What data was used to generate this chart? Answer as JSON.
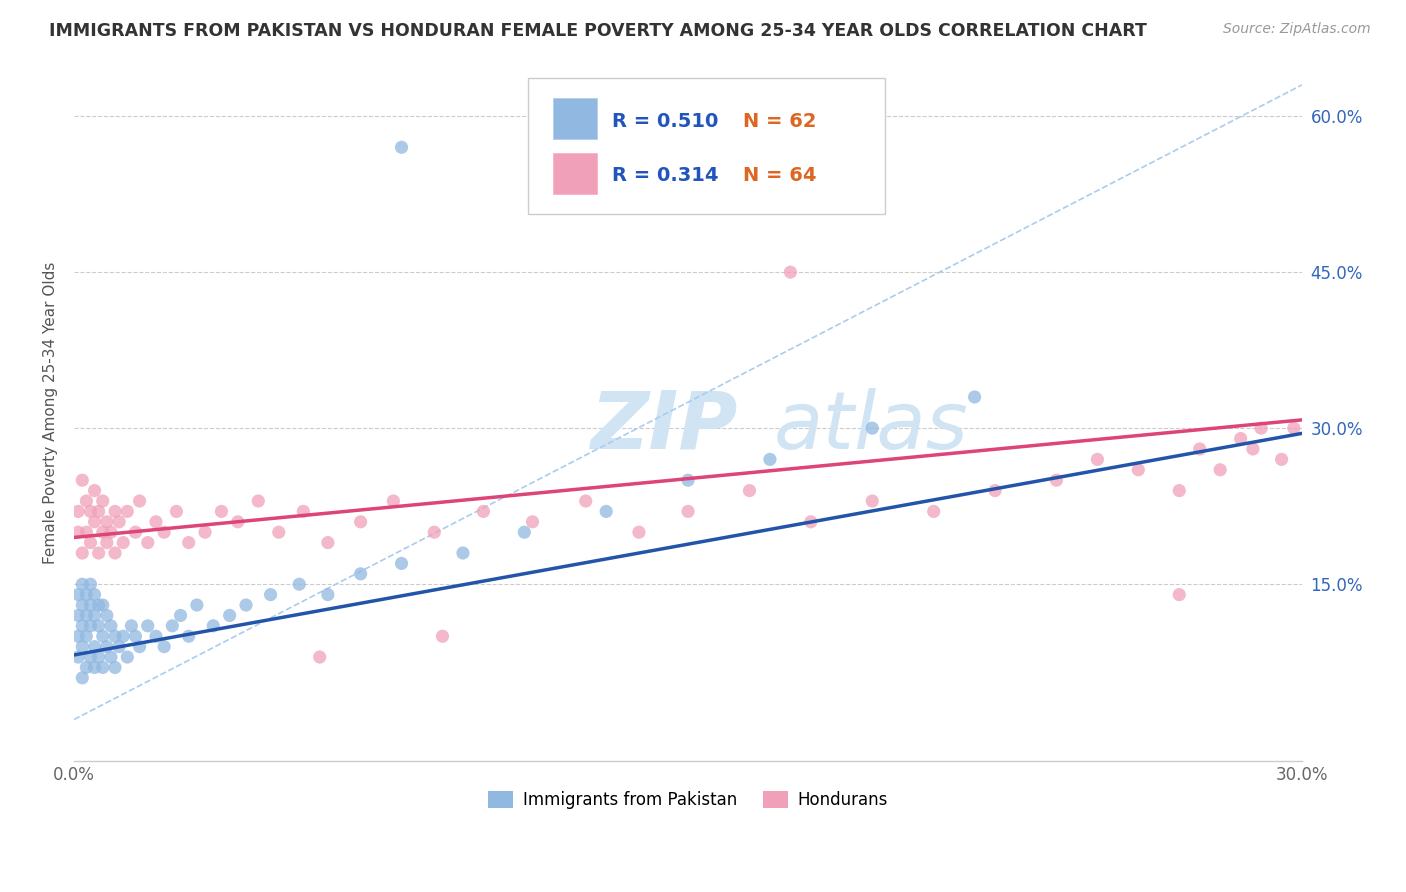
{
  "title": "IMMIGRANTS FROM PAKISTAN VS HONDURAN FEMALE POVERTY AMONG 25-34 YEAR OLDS CORRELATION CHART",
  "source": "Source: ZipAtlas.com",
  "ylabel": "Female Poverty Among 25-34 Year Olds",
  "xlim": [
    0.0,
    0.3
  ],
  "ylim": [
    -0.02,
    0.65
  ],
  "yticks": [
    0.0,
    0.15,
    0.3,
    0.45,
    0.6
  ],
  "ytick_labels_right": [
    "",
    "15.0%",
    "30.0%",
    "45.0%",
    "60.0%"
  ],
  "legend_r_blue": "R = 0.510",
  "legend_n_blue": "N = 62",
  "legend_r_pink": "R = 0.314",
  "legend_n_pink": "N = 64",
  "blue_dot_color": "#90b8e0",
  "pink_dot_color": "#f0a0b8",
  "blue_line_color": "#2255aa",
  "pink_line_color": "#dd4477",
  "dash_line_color": "#aaccee",
  "legend_text_color": "#2255bb",
  "n_text_color": "#dd6622",
  "title_color": "#333333",
  "source_color": "#999999",
  "watermark_color": "#d0e4f4",
  "pakistan_x": [
    0.001,
    0.001,
    0.001,
    0.001,
    0.002,
    0.002,
    0.002,
    0.002,
    0.002,
    0.003,
    0.003,
    0.003,
    0.003,
    0.004,
    0.004,
    0.004,
    0.004,
    0.005,
    0.005,
    0.005,
    0.005,
    0.006,
    0.006,
    0.006,
    0.007,
    0.007,
    0.007,
    0.008,
    0.008,
    0.009,
    0.009,
    0.01,
    0.01,
    0.011,
    0.012,
    0.013,
    0.014,
    0.015,
    0.016,
    0.018,
    0.02,
    0.022,
    0.024,
    0.026,
    0.028,
    0.03,
    0.034,
    0.038,
    0.042,
    0.048,
    0.055,
    0.062,
    0.07,
    0.08,
    0.095,
    0.11,
    0.13,
    0.15,
    0.17,
    0.195,
    0.22,
    0.08
  ],
  "pakistan_y": [
    0.08,
    0.1,
    0.12,
    0.14,
    0.06,
    0.09,
    0.11,
    0.13,
    0.15,
    0.07,
    0.1,
    0.12,
    0.14,
    0.08,
    0.11,
    0.13,
    0.15,
    0.07,
    0.09,
    0.12,
    0.14,
    0.08,
    0.11,
    0.13,
    0.07,
    0.1,
    0.13,
    0.09,
    0.12,
    0.08,
    0.11,
    0.07,
    0.1,
    0.09,
    0.1,
    0.08,
    0.11,
    0.1,
    0.09,
    0.11,
    0.1,
    0.09,
    0.11,
    0.12,
    0.1,
    0.13,
    0.11,
    0.12,
    0.13,
    0.14,
    0.15,
    0.14,
    0.16,
    0.17,
    0.18,
    0.2,
    0.22,
    0.25,
    0.27,
    0.3,
    0.33,
    0.57
  ],
  "honduran_x": [
    0.001,
    0.001,
    0.002,
    0.002,
    0.003,
    0.003,
    0.004,
    0.004,
    0.005,
    0.005,
    0.006,
    0.006,
    0.007,
    0.007,
    0.008,
    0.008,
    0.009,
    0.01,
    0.01,
    0.011,
    0.012,
    0.013,
    0.015,
    0.016,
    0.018,
    0.02,
    0.022,
    0.025,
    0.028,
    0.032,
    0.036,
    0.04,
    0.045,
    0.05,
    0.056,
    0.062,
    0.07,
    0.078,
    0.088,
    0.1,
    0.112,
    0.125,
    0.138,
    0.15,
    0.165,
    0.18,
    0.195,
    0.21,
    0.225,
    0.24,
    0.25,
    0.26,
    0.27,
    0.275,
    0.28,
    0.285,
    0.288,
    0.29,
    0.295,
    0.298,
    0.175,
    0.09,
    0.06,
    0.27
  ],
  "honduran_y": [
    0.2,
    0.22,
    0.18,
    0.25,
    0.2,
    0.23,
    0.19,
    0.22,
    0.21,
    0.24,
    0.18,
    0.22,
    0.2,
    0.23,
    0.19,
    0.21,
    0.2,
    0.22,
    0.18,
    0.21,
    0.19,
    0.22,
    0.2,
    0.23,
    0.19,
    0.21,
    0.2,
    0.22,
    0.19,
    0.2,
    0.22,
    0.21,
    0.23,
    0.2,
    0.22,
    0.19,
    0.21,
    0.23,
    0.2,
    0.22,
    0.21,
    0.23,
    0.2,
    0.22,
    0.24,
    0.21,
    0.23,
    0.22,
    0.24,
    0.25,
    0.27,
    0.26,
    0.24,
    0.28,
    0.26,
    0.29,
    0.28,
    0.3,
    0.27,
    0.3,
    0.45,
    0.1,
    0.08,
    0.14
  ],
  "blue_line_x0": 0.0,
  "blue_line_y0": 0.082,
  "blue_line_x1": 0.3,
  "blue_line_y1": 0.295,
  "pink_line_x0": 0.0,
  "pink_line_y0": 0.195,
  "pink_line_x1": 0.3,
  "pink_line_y1": 0.308,
  "dash_line_x0": 0.0,
  "dash_line_y0": 0.02,
  "dash_line_x1": 0.3,
  "dash_line_y1": 0.63
}
